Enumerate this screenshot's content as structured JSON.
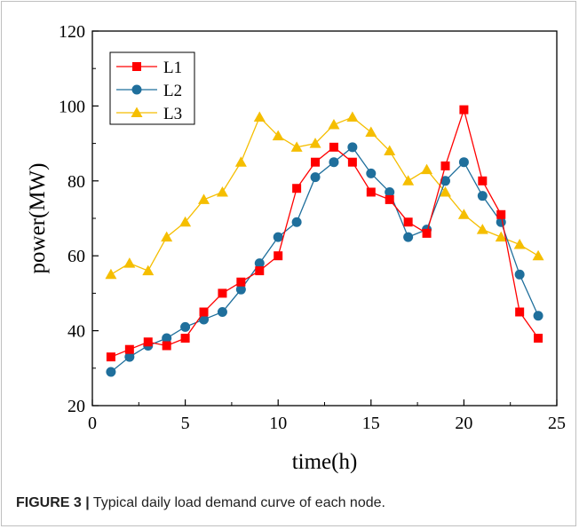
{
  "chart_data": {
    "type": "line",
    "x": [
      1,
      2,
      3,
      4,
      5,
      6,
      7,
      8,
      9,
      10,
      11,
      12,
      13,
      14,
      15,
      16,
      17,
      18,
      19,
      20,
      21,
      22,
      23,
      24
    ],
    "series": [
      {
        "name": "L1",
        "color": "#ff0000",
        "marker": "square",
        "values": [
          33,
          35,
          37,
          36,
          38,
          45,
          50,
          53,
          56,
          60,
          78,
          85,
          89,
          85,
          77,
          75,
          69,
          66,
          84,
          99,
          80,
          71,
          45,
          38
        ]
      },
      {
        "name": "L2",
        "color": "#1f6f9c",
        "marker": "circle",
        "values": [
          29,
          33,
          36,
          38,
          41,
          43,
          45,
          51,
          58,
          65,
          69,
          81,
          85,
          89,
          82,
          77,
          65,
          67,
          80,
          85,
          76,
          69,
          55,
          44
        ]
      },
      {
        "name": "L3",
        "color": "#f5be00",
        "marker": "triangle",
        "values": [
          55,
          58,
          56,
          65,
          69,
          75,
          77,
          85,
          97,
          92,
          89,
          90,
          95,
          97,
          93,
          88,
          80,
          83,
          77,
          71,
          67,
          65,
          63,
          60
        ]
      }
    ],
    "xlabel": "time(h)",
    "ylabel": "power(MW)",
    "xlim": [
      0,
      25
    ],
    "ylim": [
      20,
      120
    ],
    "xticks": [
      0,
      5,
      10,
      15,
      20,
      25
    ],
    "yticks": [
      20,
      40,
      60,
      80,
      100,
      120
    ],
    "grid": false,
    "legend": "top-left"
  },
  "caption": {
    "label": "FIGURE 3 |",
    "text": " Typical daily load demand curve of each node."
  }
}
